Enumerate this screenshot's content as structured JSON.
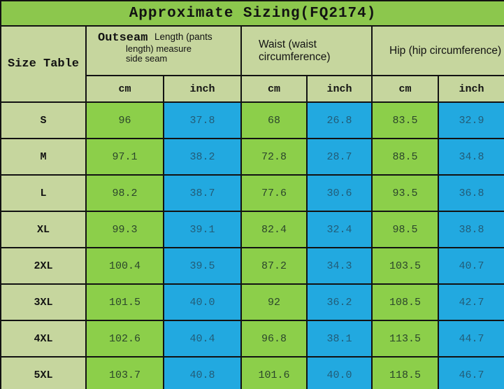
{
  "title": "Approximate Sizing(FQ2174)",
  "table": {
    "corner_label": "Size Table",
    "outseam_header": {
      "bold_label": "Outseam",
      "line1": "Length (pants",
      "line2": "length) measure",
      "line3": "side seam"
    },
    "waist_header": "Waist (waist circumference)",
    "hip_header": "Hip (hip circumference)",
    "unit_headers": [
      "cm",
      "inch",
      "cm",
      "inch",
      "cm",
      "inch"
    ],
    "rows": [
      {
        "size": "S",
        "values": [
          "96",
          "37.8",
          "68",
          "26.8",
          "83.5",
          "32.9"
        ]
      },
      {
        "size": "M",
        "values": [
          "97.1",
          "38.2",
          "72.8",
          "28.7",
          "88.5",
          "34.8"
        ]
      },
      {
        "size": "L",
        "values": [
          "98.2",
          "38.7",
          "77.6",
          "30.6",
          "93.5",
          "36.8"
        ]
      },
      {
        "size": "XL",
        "values": [
          "99.3",
          "39.1",
          "82.4",
          "32.4",
          "98.5",
          "38.8"
        ]
      },
      {
        "size": "2XL",
        "values": [
          "100.4",
          "39.5",
          "87.2",
          "34.3",
          "103.5",
          "40.7"
        ]
      },
      {
        "size": "3XL",
        "values": [
          "101.5",
          "40.0",
          "92",
          "36.2",
          "108.5",
          "42.7"
        ]
      },
      {
        "size": "4XL",
        "values": [
          "102.6",
          "40.4",
          "96.8",
          "38.1",
          "113.5",
          "44.7"
        ]
      },
      {
        "size": "5XL",
        "values": [
          "103.7",
          "40.8",
          "101.6",
          "40.0",
          "118.5",
          "46.7"
        ]
      }
    ]
  },
  "colors": {
    "title_green": "#8CC74D",
    "header_sage": "#C6D69E",
    "cell_green": "#8CCF4A",
    "cell_blue": "#22A9E0",
    "border": "#121212",
    "text_dark": "#121212",
    "text_on_green": "#2B452B",
    "text_on_blue": "#235C77"
  }
}
